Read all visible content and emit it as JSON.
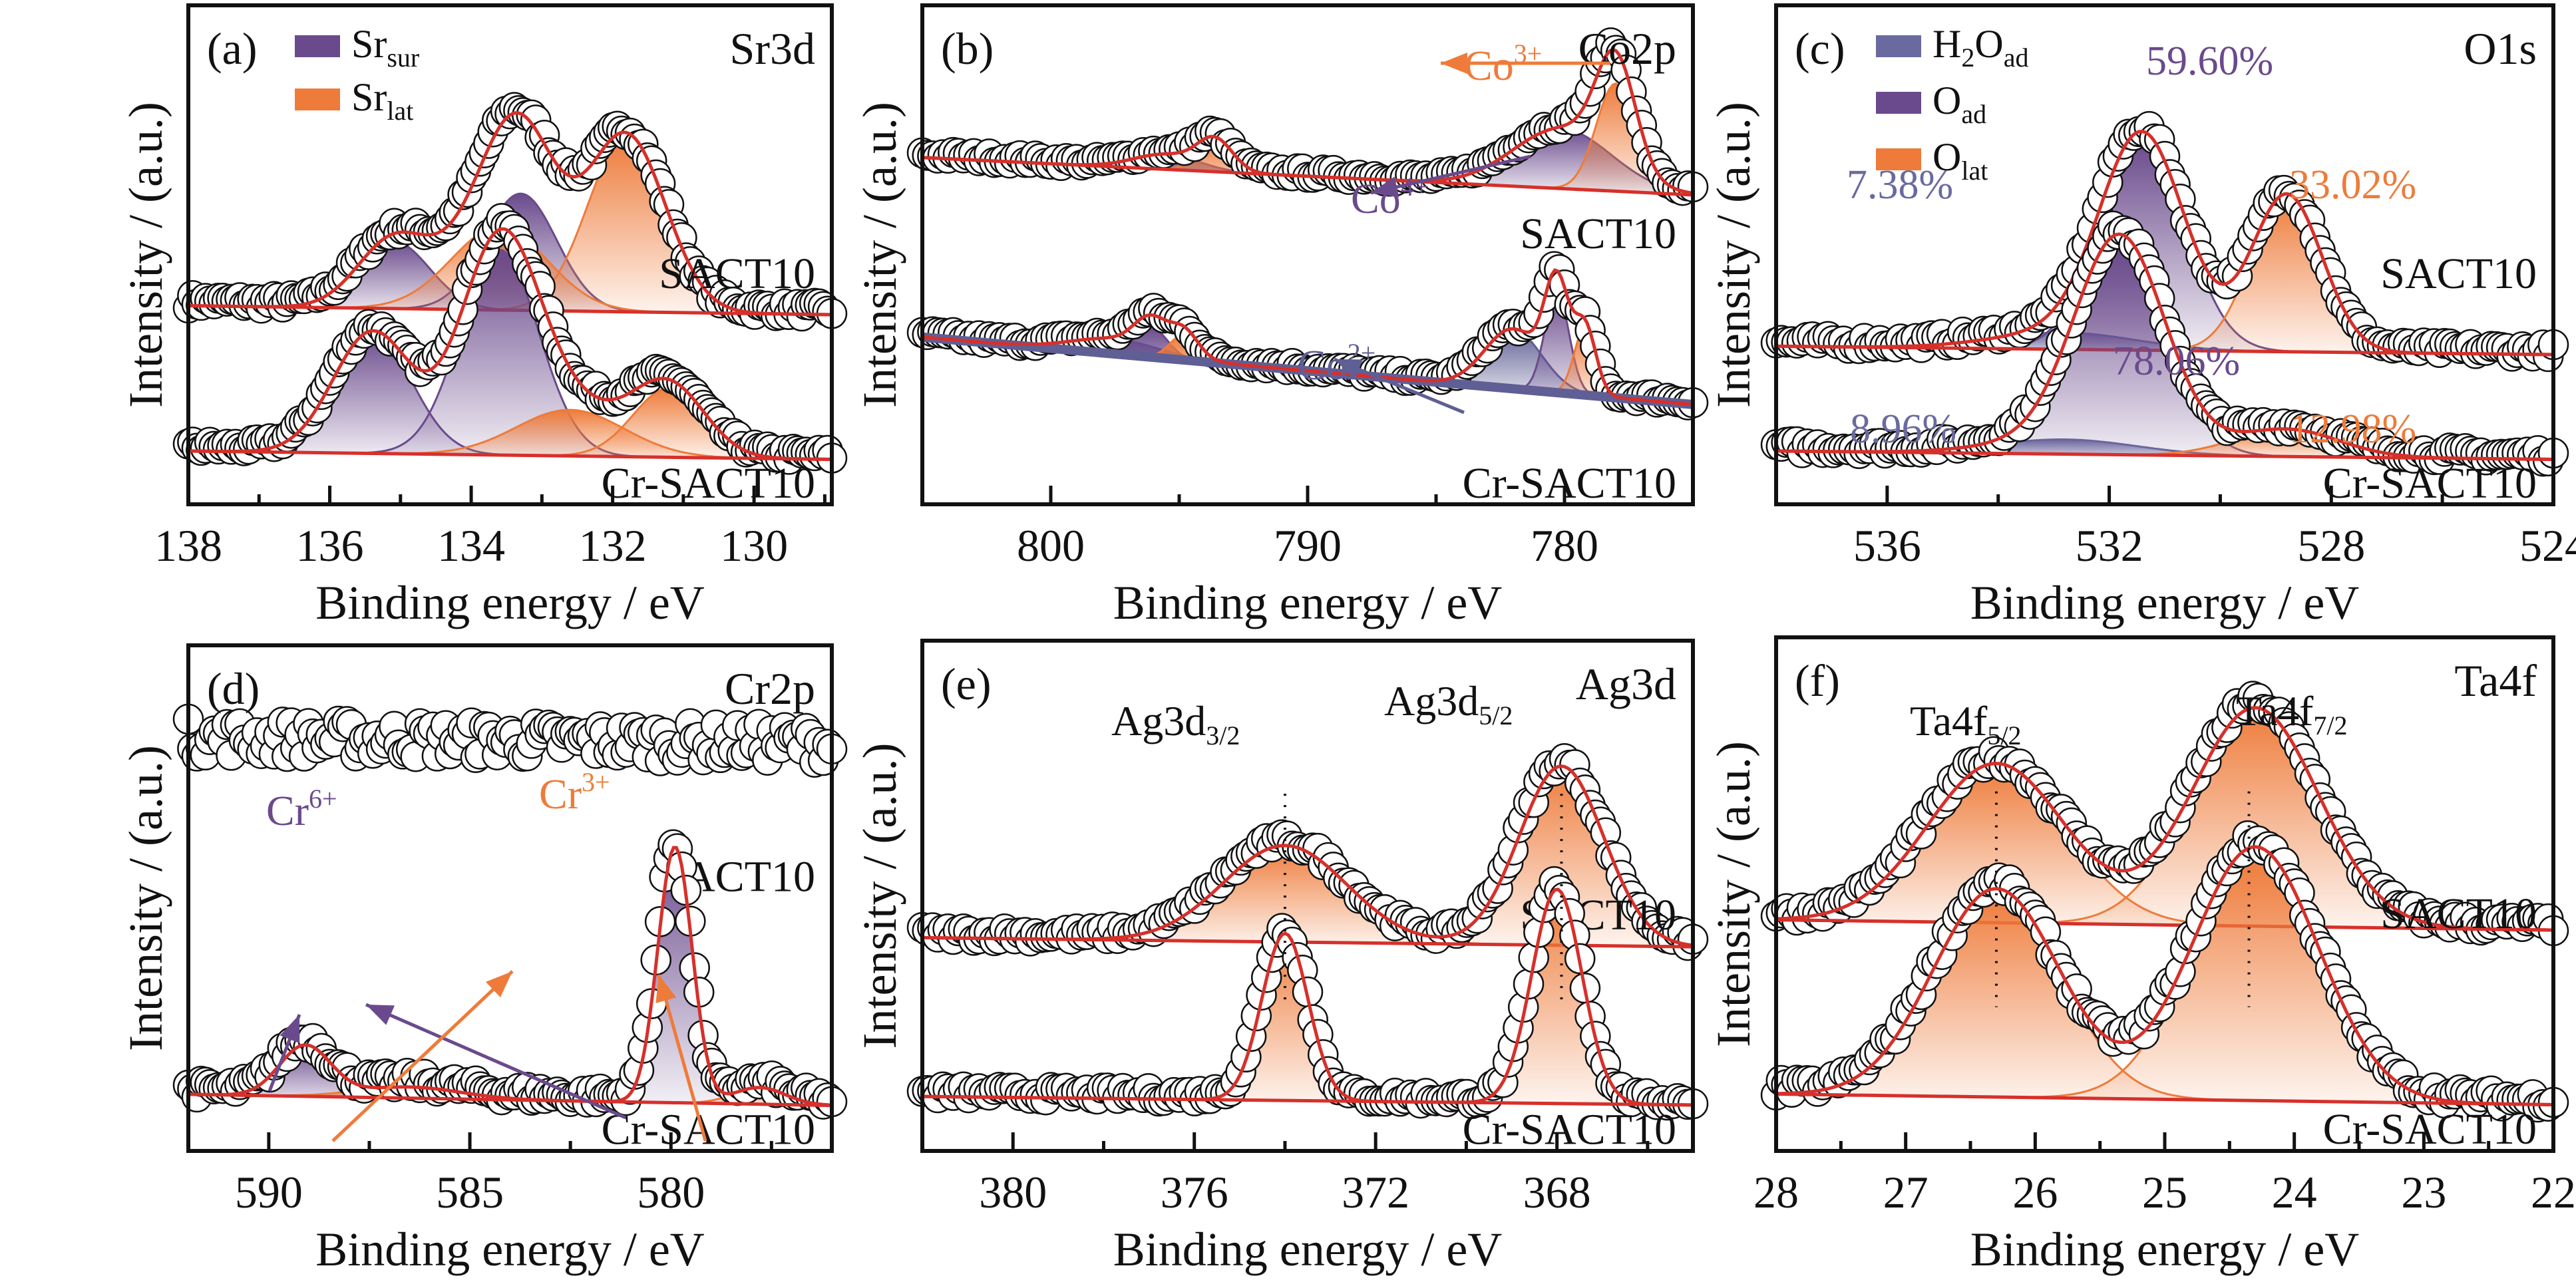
{
  "figure": {
    "ylabel": "Intensity / (a.u.)",
    "xlabel": "Binding energy / eV",
    "samples": [
      "SACT10",
      "Cr-SACT10"
    ]
  },
  "colors": {
    "sur_purple": "#6a4a8c",
    "lat_orange": "#ee7b3a",
    "h2o_blue": "#6a6aa0",
    "envelope_red": "#d6302b",
    "background_red": "#d6302b",
    "co2_blue": "#5f5f95",
    "axis": "#111111"
  },
  "chart_data": [
    {
      "panel": "(a)",
      "title": "Sr3d",
      "type": "area",
      "xlim": [
        138.0,
        128.9
      ],
      "xticks": [
        138,
        136,
        134,
        132,
        130
      ],
      "minor_step": 1,
      "xlabel": "Binding energy / eV",
      "ylabel": "Intensity / (a.u.)",
      "legend": [
        {
          "label": "Sr",
          "sub": "sur",
          "color": "#6a4a8c"
        },
        {
          "label": "Sr",
          "sub": "lat",
          "color": "#ee7b3a"
        }
      ],
      "legend_position": "top-left",
      "spectra": [
        {
          "sample": "SACT10",
          "peaks": [
            {
              "name": "Sr_sur",
              "center": 135.1,
              "fwhm": 1.2,
              "height": 0.3,
              "color": "#6a4a8c"
            },
            {
              "name": "Sr_sur",
              "center": 133.3,
              "fwhm": 1.2,
              "height": 0.52,
              "color": "#6a4a8c"
            },
            {
              "name": "Sr_lat",
              "center": 133.6,
              "fwhm": 1.6,
              "height": 0.37,
              "color": "#ee7b3a"
            },
            {
              "name": "Sr_lat",
              "center": 131.8,
              "fwhm": 1.3,
              "height": 0.78,
              "color": "#ee7b3a"
            }
          ]
        },
        {
          "sample": "Cr-SACT10",
          "peaks": [
            {
              "name": "Sr_sur",
              "center": 135.4,
              "fwhm": 1.3,
              "height": 0.58,
              "color": "#6a4a8c"
            },
            {
              "name": "Sr_sur",
              "center": 133.6,
              "fwhm": 1.3,
              "height": 0.98,
              "color": "#6a4a8c"
            },
            {
              "name": "Sr_lat",
              "center": 132.6,
              "fwhm": 1.8,
              "height": 0.22,
              "color": "#ee7b3a"
            },
            {
              "name": "Sr_lat",
              "center": 131.2,
              "fwhm": 1.2,
              "height": 0.33,
              "color": "#ee7b3a"
            }
          ]
        }
      ],
      "annotations": []
    },
    {
      "panel": "(b)",
      "title": "Co2p",
      "type": "area",
      "xlim": [
        805.0,
        775.0
      ],
      "xticks": [
        800,
        790,
        780
      ],
      "minor_step": 5,
      "xlabel": "Binding energy / eV",
      "ylabel": "Intensity / (a.u.)",
      "legend": [],
      "spectra": [
        {
          "sample": "SACT10",
          "background_slope": 0.25,
          "peaks": [
            {
              "name": "Co4+",
              "center": 795.5,
              "fwhm": 3.0,
              "height": 0.1,
              "color": "#6a4a8c"
            },
            {
              "name": "Co3+",
              "center": 793.6,
              "fwhm": 1.6,
              "height": 0.2,
              "color": "#ee7b3a"
            },
            {
              "name": "Co4+",
              "center": 780.1,
              "fwhm": 4.5,
              "height": 0.4,
              "color": "#6a4a8c"
            },
            {
              "name": "Co3+",
              "center": 778.0,
              "fwhm": 1.8,
              "height": 0.72,
              "color": "#ee7b3a"
            }
          ]
        },
        {
          "sample": "Cr-SACT10",
          "background_slope": 0.45,
          "peaks": [
            {
              "name": "Co2+",
              "center": 797.5,
              "fwhm": 4.0,
              "height": 0.1,
              "color": "#5f5f95"
            },
            {
              "name": "Co4+",
              "center": 796.1,
              "fwhm": 1.5,
              "height": 0.2,
              "color": "#6a4a8c"
            },
            {
              "name": "Co3+",
              "center": 794.8,
              "fwhm": 1.3,
              "height": 0.17,
              "color": "#ee7b3a"
            },
            {
              "name": "Co2+",
              "center": 782.0,
              "fwhm": 2.6,
              "height": 0.4,
              "color": "#5f5f95"
            },
            {
              "name": "Co4+",
              "center": 780.3,
              "fwhm": 1.1,
              "height": 0.68,
              "color": "#6a4a8c"
            },
            {
              "name": "Co3+",
              "center": 779.2,
              "fwhm": 1.0,
              "height": 0.45,
              "color": "#ee7b3a"
            }
          ]
        }
      ],
      "annotations": [
        {
          "text": "Co",
          "sup": "3+",
          "color": "#ee7b3a"
        },
        {
          "text": "Co",
          "sup": "4+",
          "color": "#6a4a8c"
        },
        {
          "text": "Co",
          "sup": "2+",
          "color": "#5f5f95"
        }
      ]
    },
    {
      "panel": "(c)",
      "title": "O1s",
      "type": "area",
      "xlim": [
        538.0,
        524.0
      ],
      "xticks": [
        536,
        532,
        528,
        524
      ],
      "minor_step": 2,
      "xlabel": "Binding energy / eV",
      "ylabel": "Intensity / (a.u.)",
      "legend": [
        {
          "label": "H",
          "sub2": "2",
          "label2": "O",
          "sub": "ad",
          "color": "#6a6aa0"
        },
        {
          "label": "O",
          "sub": "ad",
          "color": "#6a4a8c"
        },
        {
          "label": "O",
          "sub": "lat",
          "color": "#ee7b3a"
        }
      ],
      "legend_position": "top-left",
      "spectra": [
        {
          "sample": "SACT10",
          "peaks": [
            {
              "name": "H2O_ad",
              "center": 532.8,
              "fwhm": 3.0,
              "height": 0.08,
              "color": "#6a6aa0"
            },
            {
              "name": "O_ad",
              "center": 531.4,
              "fwhm": 1.8,
              "height": 1.0,
              "color": "#6a4a8c"
            },
            {
              "name": "O_lat",
              "center": 528.8,
              "fwhm": 1.5,
              "height": 0.75,
              "color": "#ee7b3a"
            }
          ],
          "percentages": {
            "H2O_ad": "7.38%",
            "O_ad": "59.60%",
            "O_lat": "33.02%"
          }
        },
        {
          "sample": "Cr-SACT10",
          "peaks": [
            {
              "name": "H2O_ad",
              "center": 532.8,
              "fwhm": 3.0,
              "height": 0.07,
              "color": "#6a6aa0"
            },
            {
              "name": "O_ad",
              "center": 531.8,
              "fwhm": 1.9,
              "height": 1.0,
              "color": "#6a4a8c"
            },
            {
              "name": "O_lat",
              "center": 528.8,
              "fwhm": 2.2,
              "height": 0.13,
              "color": "#ee7b3a"
            }
          ],
          "percentages": {
            "H2O_ad": "8.96%",
            "O_ad": "78.06%",
            "O_lat": "12.98%"
          }
        }
      ],
      "annotations": [
        {
          "text": "7.38%",
          "color": "#6a6aa0"
        },
        {
          "text": "59.60%",
          "color": "#6a4a8c"
        },
        {
          "text": "33.02%",
          "color": "#ee7b3a"
        },
        {
          "text": "8.96%",
          "color": "#6a6aa0"
        },
        {
          "text": "78.06%",
          "color": "#6a4a8c"
        },
        {
          "text": "12.98%",
          "color": "#ee7b3a"
        }
      ]
    },
    {
      "panel": "(d)",
      "title": "Cr2p",
      "type": "area",
      "xlim": [
        592.0,
        576.0
      ],
      "xticks": [
        590,
        585,
        580
      ],
      "minor_step": 2.5,
      "xlabel": "Binding energy / eV",
      "ylabel": "Intensity / (a.u.)",
      "legend": [],
      "spectra": [
        {
          "sample": "SACT10",
          "peaks": [],
          "noise_only": true
        },
        {
          "sample": "Cr-SACT10",
          "peaks": [
            {
              "name": "Cr6+",
              "center": 589.1,
              "fwhm": 1.5,
              "height": 0.18,
              "color": "#6a4a8c"
            },
            {
              "name": "Cr3+",
              "center": 586.5,
              "fwhm": 3.0,
              "height": 0.04,
              "color": "#ee7b3a"
            },
            {
              "name": "Cr6+",
              "center": 579.9,
              "fwhm": 1.0,
              "height": 0.92,
              "color": "#6a4a8c"
            },
            {
              "name": "Cr3+",
              "center": 577.8,
              "fwhm": 1.5,
              "height": 0.06,
              "color": "#ee7b3a"
            }
          ]
        }
      ],
      "annotations": [
        {
          "text": "Cr",
          "sup": "6+",
          "color": "#6a4a8c"
        },
        {
          "text": "Cr",
          "sup": "3+",
          "color": "#ee7b3a"
        }
      ]
    },
    {
      "panel": "(e)",
      "title": "Ag3d",
      "type": "area",
      "xlim": [
        382.0,
        365.0
      ],
      "xticks": [
        380,
        376,
        372,
        368
      ],
      "minor_step": 2,
      "xlabel": "Binding energy / eV",
      "ylabel": "Intensity / (a.u.)",
      "legend": [],
      "spectra": [
        {
          "sample": "SACT10",
          "peaks": [
            {
              "name": "Ag3d3/2",
              "center": 374.0,
              "fwhm": 3.2,
              "height": 0.42,
              "color": "#ee7b3a"
            },
            {
              "name": "Ag3d5/2",
              "center": 367.9,
              "fwhm": 2.2,
              "height": 0.78,
              "color": "#ee7b3a"
            }
          ]
        },
        {
          "sample": "Cr-SACT10",
          "peaks": [
            {
              "name": "Ag3d3/2",
              "center": 374.0,
              "fwhm": 1.2,
              "height": 0.78,
              "color": "#ee7b3a"
            },
            {
              "name": "Ag3d5/2",
              "center": 368.0,
              "fwhm": 1.3,
              "height": 1.0,
              "color": "#ee7b3a"
            }
          ]
        }
      ],
      "peak_markers": [
        374.0,
        367.9
      ],
      "annotations": [
        {
          "text": "Ag3d",
          "sub": "3/2"
        },
        {
          "text": "Ag3d",
          "sub": "5/2"
        }
      ]
    },
    {
      "panel": "(f)",
      "title": "Ta4f",
      "type": "area",
      "xlim": [
        28.0,
        22.0
      ],
      "xticks": [
        28,
        27,
        26,
        25,
        24,
        23,
        22
      ],
      "minor_step": 0.5,
      "xlabel": "Binding energy / eV",
      "ylabel": "Intensity / (a.u.)",
      "legend": [],
      "spectra": [
        {
          "sample": "SACT10",
          "peaks": [
            {
              "name": "Ta4f5/2",
              "center": 26.3,
              "fwhm": 1.25,
              "height": 0.62,
              "color": "#ee7b3a"
            },
            {
              "name": "Ta4f7/2",
              "center": 24.3,
              "fwhm": 1.15,
              "height": 0.85,
              "color": "#ee7b3a"
            }
          ]
        },
        {
          "sample": "Cr-SACT10",
          "peaks": [
            {
              "name": "Ta4f5/2",
              "center": 26.3,
              "fwhm": 1.15,
              "height": 0.78,
              "color": "#ee7b3a"
            },
            {
              "name": "Ta4f7/2",
              "center": 24.3,
              "fwhm": 1.15,
              "height": 0.95,
              "color": "#ee7b3a"
            }
          ]
        }
      ],
      "peak_markers": [
        26.3,
        24.35
      ],
      "annotations": [
        {
          "text": "Ta4f",
          "sub": "5/2"
        },
        {
          "text": "Ta4f",
          "sub": "7/2"
        }
      ]
    }
  ]
}
